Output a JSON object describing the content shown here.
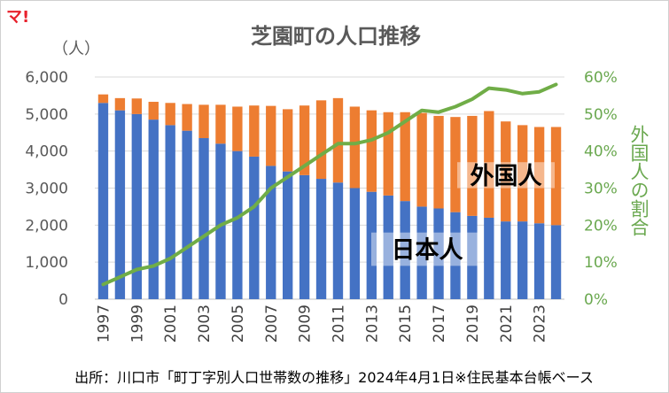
{
  "logo_text": "マ!",
  "chart_data": {
    "type": "bar",
    "title": "芝園町の人口推移",
    "y_unit_label": "（人）",
    "ylabel_right": "外国人の割合",
    "years": [
      1997,
      1998,
      1999,
      2000,
      2001,
      2002,
      2003,
      2004,
      2005,
      2006,
      2007,
      2008,
      2009,
      2010,
      2011,
      2012,
      2013,
      2014,
      2015,
      2016,
      2017,
      2018,
      2019,
      2020,
      2021,
      2022,
      2023,
      2024
    ],
    "x_tick_labels": [
      "1997",
      "1999",
      "2001",
      "2003",
      "2005",
      "2007",
      "2009",
      "2011",
      "2013",
      "2015",
      "2017",
      "2019",
      "2021",
      "2023"
    ],
    "series": [
      {
        "name": "日本人",
        "color": "#4472c4",
        "values": [
          5300,
          5100,
          5000,
          4850,
          4700,
          4550,
          4350,
          4200,
          4000,
          3850,
          3600,
          3450,
          3350,
          3250,
          3150,
          3000,
          2900,
          2800,
          2650,
          2500,
          2450,
          2350,
          2250,
          2200,
          2100,
          2100,
          2050,
          2000
        ]
      },
      {
        "name": "外国人",
        "color": "#ed7d31",
        "values": [
          230,
          330,
          420,
          480,
          600,
          720,
          900,
          1050,
          1200,
          1380,
          1620,
          1680,
          1880,
          2120,
          2280,
          2200,
          2200,
          2250,
          2400,
          2530,
          2500,
          2570,
          2700,
          2880,
          2700,
          2600,
          2600,
          2650
        ]
      },
      {
        "name": "外国人の割合",
        "color": "#70ad47",
        "type": "line",
        "values": [
          4,
          6,
          8,
          9,
          11,
          14,
          17,
          20,
          22,
          25,
          30,
          33,
          36,
          39,
          42,
          42,
          43,
          45,
          48,
          51,
          50.5,
          52,
          54,
          57,
          56.5,
          55.5,
          56,
          58
        ]
      }
    ],
    "ylim_left": [
      0,
      6000
    ],
    "yticks_left": [
      "0",
      "1,000",
      "2,000",
      "3,000",
      "4,000",
      "5,000",
      "6,000"
    ],
    "ylim_right": [
      0,
      60
    ],
    "yticks_right": [
      "0%",
      "10%",
      "20%",
      "30%",
      "40%",
      "50%",
      "60%"
    ],
    "annotations": {
      "japanese": "日本人",
      "foreign": "外国人"
    },
    "grid": "horizontal",
    "source": "出所：川口市「町丁字別人口世帯数の推移」2024年4月1日※住民基本台帳ベース"
  }
}
